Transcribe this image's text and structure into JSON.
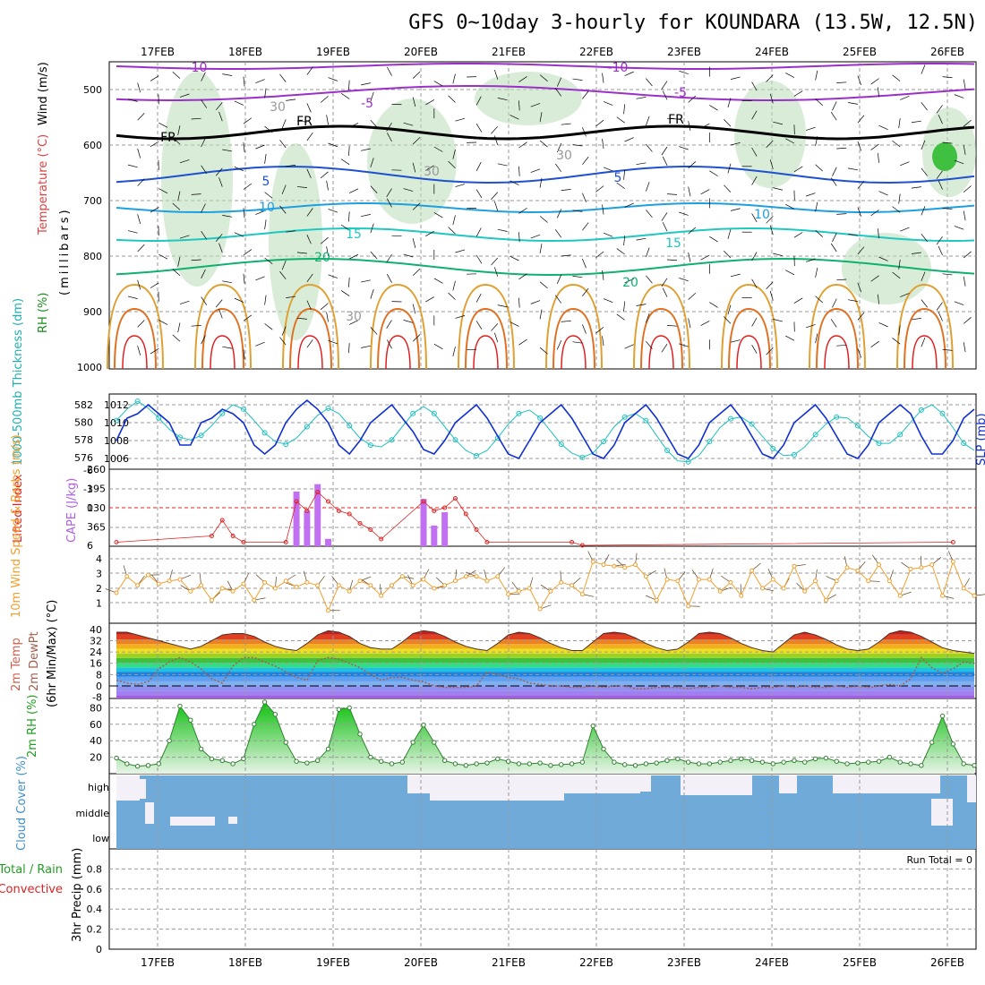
{
  "header": {
    "title": "GFS 0~10day 3-hourly for KOUNDARA (13.5W, 12.5N)"
  },
  "colors": {
    "isotherm_minus10": "#9b30c8",
    "isotherm_minus5": "#9b30c8",
    "freezing_level": "#000000",
    "isotherm_5": "#1e50d0",
    "isotherm_10": "#1ea0e0",
    "isotherm_15": "#1ec8c0",
    "isotherm_20": "#10b070",
    "isotherm_warm": "#e0a030",
    "rh_fill": "#b8dcb8",
    "slp_line": "#1030d0",
    "thickness_line": "#20c0c0",
    "lifted_index": "#e02020",
    "cape_bars": "#c070f0",
    "wind_speed": "#f0a030",
    "dewpoint": "#a06050",
    "rh2m_fill": "#20c020",
    "cloud_fill": "#70aad8",
    "cloud_clear": "#f4f0f8",
    "grid": "#999999"
  },
  "chart_data": [
    {
      "panel": "upper-air",
      "type": "contour",
      "ylabel_temperature": "Temperature (°C)",
      "ylabel_wind": "Wind (m/s)",
      "ylabel_rh": "RH (%)",
      "ylabel_axis": "(millibars)",
      "y_ticks": [
        "500",
        "600",
        "700",
        "800",
        "900",
        "1000"
      ],
      "contour_labels": [
        "-10",
        "-10",
        "-5",
        "-5",
        "FR",
        "FR",
        "FR",
        "5",
        "5",
        "10",
        "10",
        "15",
        "15",
        "20",
        "20",
        "30",
        "30",
        "30",
        "30"
      ]
    },
    {
      "panel": "slp-thickness",
      "type": "line",
      "ylabel_left": "1000-500mb Thickness (dm)",
      "ylabel_right": "SLP (mb)",
      "y_ticks_left": [
        "582",
        "580",
        "578",
        "576"
      ],
      "y_ticks_right": [
        "1012",
        "1010",
        "1008",
        "1006"
      ],
      "series": [
        {
          "name": "SLP (mb)",
          "values": [
            1008,
            1010.5,
            1011,
            1012,
            1011,
            1010,
            1007.5,
            1007.5,
            1010,
            1010.5,
            1011.5,
            1011,
            1010,
            1007.5,
            1006.5,
            1007.5,
            1010,
            1011.5,
            1012.5,
            1011.5,
            1010,
            1007.5,
            1006.5,
            1008,
            1010,
            1011,
            1012,
            1010.5,
            1009,
            1007,
            1006.5,
            1008,
            1010,
            1011,
            1012,
            1010.5,
            1008.5,
            1006.5,
            1006,
            1008,
            1010,
            1011,
            1012,
            1010.5,
            1008.5,
            1006.5,
            1006,
            1007.5,
            1010,
            1011,
            1012,
            1010.5,
            1008.5,
            1006.5,
            1006,
            1007.5,
            1010,
            1011,
            1012,
            1010.5,
            1008.5,
            1006.5,
            1006,
            1007.5,
            1010,
            1011,
            1012,
            1010.5,
            1008.5,
            1006.5,
            1006,
            1007.5,
            1010,
            1011,
            1012,
            1011,
            1008.5,
            1006.5,
            1006.5,
            1008,
            1010.5,
            1011.5
          ]
        },
        {
          "name": "Thickness (dm)",
          "values": [
            580.2,
            581.5,
            582.4,
            581.6,
            580.5,
            579.2,
            578.3,
            578.0,
            578.5,
            579.6,
            581.0,
            582.0,
            581.5,
            580.2,
            578.8,
            577.8,
            577.5,
            578.2,
            579.5,
            580.8,
            581.6,
            581.0,
            579.6,
            578.2,
            577.4,
            577.2,
            578.0,
            579.5,
            581.0,
            581.8,
            581.0,
            579.5,
            578.0,
            576.8,
            576.2,
            576.8,
            578.2,
            579.8,
            581.0,
            581.4,
            580.5,
            579.0,
            577.5,
            576.5,
            576.0,
            576.5,
            577.8,
            579.5,
            580.6,
            581.0,
            580.2,
            578.5,
            576.8,
            575.6,
            575.5,
            576.2,
            577.8,
            579.4,
            580.4,
            580.6,
            579.8,
            578.4,
            577.0,
            576.2,
            576.3,
            577.2,
            578.6,
            579.8,
            580.6,
            580.5,
            579.6,
            578.4,
            577.6,
            577.6,
            578.6,
            580.0,
            581.4,
            582.0,
            581.0,
            579.4,
            577.6,
            576.8
          ]
        }
      ]
    },
    {
      "panel": "stability",
      "type": "bar",
      "ylabel_left": "Lifted Index",
      "ylabel_right": "CAPE (J/kg)",
      "y_ticks_left": [
        "-6",
        "-3",
        "0",
        "3",
        "6"
      ],
      "y_ticks_right": [
        "260",
        "195",
        "130",
        "65"
      ],
      "series": [
        {
          "name": "CAPE (J/kg)",
          "values": [
            0,
            0,
            0,
            0,
            0,
            0,
            0,
            0,
            0,
            0,
            0,
            0,
            0,
            0,
            0,
            0,
            0,
            185,
            120,
            210,
            25,
            0,
            0,
            0,
            0,
            0,
            0,
            0,
            0,
            160,
            70,
            115,
            0,
            0,
            0,
            0,
            0,
            0,
            0,
            0,
            0,
            0,
            0,
            0,
            0,
            0,
            0,
            0,
            0,
            0,
            0,
            0,
            0,
            0,
            0,
            0,
            0,
            0,
            0,
            0,
            0,
            0,
            0,
            0,
            0,
            0,
            0,
            0,
            0,
            0,
            0,
            0,
            0,
            0,
            0,
            0,
            0,
            0,
            0,
            0,
            0,
            0
          ]
        },
        {
          "name": "Lifted Index",
          "values": [
            5.5,
            null,
            null,
            null,
            null,
            null,
            null,
            null,
            null,
            4.5,
            2.0,
            4.5,
            5.5,
            null,
            null,
            null,
            5.5,
            -1.0,
            0.5,
            -2.5,
            -1.0,
            0.5,
            1.0,
            2.5,
            3.5,
            5.0,
            null,
            null,
            null,
            -1.0,
            0.5,
            0.0,
            -1.5,
            1.0,
            3.5,
            5.5,
            null,
            null,
            null,
            null,
            null,
            null,
            null,
            5.5,
            6.0,
            null,
            null,
            null,
            null,
            null,
            null,
            null,
            null,
            null,
            null,
            null,
            null,
            null,
            null,
            null,
            null,
            null,
            null,
            null,
            null,
            null,
            null,
            null,
            null,
            null,
            null,
            null,
            null,
            null,
            null,
            null,
            null,
            null,
            null,
            5.5,
            null,
            null
          ]
        }
      ]
    },
    {
      "panel": "surface-wind",
      "type": "line",
      "ylabel": "10m Wind Speed & Barbs (m/s)",
      "y_ticks": [
        "4",
        "3",
        "2",
        "1"
      ],
      "series": [
        {
          "name": "10m Wind Speed (m/s)",
          "values": [
            1.7,
            2.8,
            2.2,
            2.9,
            2.3,
            2.5,
            2.6,
            1.8,
            2.2,
            1.2,
            2.0,
            1.8,
            2.3,
            1.2,
            2.4,
            2.0,
            2.5,
            2.1,
            2.4,
            2.2,
            0.5,
            2.2,
            1.8,
            2.5,
            2.2,
            1.5,
            2.2,
            2.8,
            2.2,
            2.6,
            2.0,
            2.2,
            2.5,
            2.8,
            2.8,
            2.5,
            2.8,
            1.6,
            1.8,
            2.0,
            0.6,
            1.8,
            2.4,
            2.2,
            1.6,
            3.8,
            3.6,
            3.5,
            3.4,
            3.6,
            2.8,
            1.2,
            2.6,
            2.5,
            0.8,
            2.6,
            2.6,
            1.8,
            2.4,
            1.5,
            3.2,
            2.0,
            2.6,
            2.0,
            3.5,
            1.8,
            2.5,
            1.2,
            2.5,
            3.4,
            3.2,
            2.5,
            3.6,
            2.5,
            1.5,
            3.3,
            3.4,
            3.6,
            1.5,
            3.8,
            2.0,
            1.5
          ]
        }
      ]
    },
    {
      "panel": "surface-temperature",
      "type": "area",
      "ylabel_temp": "2m Temp",
      "ylabel_dewpt": "2m DewPt",
      "ylabel_minmax": "(6hr Min/Max) (°C)",
      "y_ticks": [
        "40",
        "32",
        "24",
        "16",
        "8",
        "0",
        "-8"
      ],
      "series": [
        {
          "name": "2m Temp",
          "values": [
            38,
            38,
            36,
            34,
            32,
            30,
            28,
            26,
            28,
            32,
            36,
            37,
            37,
            35,
            31,
            28,
            26,
            25,
            30,
            36,
            39,
            38,
            35,
            30,
            27,
            26,
            26,
            31,
            37,
            39,
            38,
            35,
            31,
            28,
            26,
            25,
            30,
            36,
            38,
            37,
            34,
            30,
            27,
            25,
            25,
            31,
            37,
            38,
            37,
            34,
            30,
            27,
            25,
            26,
            31,
            37,
            38,
            37,
            34,
            30,
            27,
            25,
            24,
            30,
            36,
            38,
            36,
            33,
            29,
            26,
            25,
            26,
            31,
            37,
            39,
            38,
            35,
            31,
            27,
            25,
            24,
            23
          ]
        },
        {
          "name": "2m DewPt",
          "values": [
            4,
            2,
            1,
            3,
            12,
            17,
            20,
            17,
            12,
            5,
            2,
            14,
            20,
            20,
            17,
            14,
            10,
            6,
            4,
            18,
            20,
            19,
            16,
            13,
            8,
            4,
            6,
            6,
            4,
            3,
            0,
            -1,
            -1,
            -1,
            0,
            10,
            8,
            6,
            5,
            2,
            1,
            0,
            0,
            -1,
            -1,
            0,
            -1,
            0,
            0,
            -2,
            -2,
            -1,
            -1,
            -1,
            -2,
            -1,
            -1,
            0,
            -1,
            -1,
            -2,
            -1,
            -1,
            0,
            -1,
            0,
            -1,
            -1,
            0,
            -1,
            0,
            -1,
            0,
            1,
            0,
            5,
            20,
            13,
            9,
            12,
            17,
            16
          ]
        }
      ]
    },
    {
      "panel": "surface-rh",
      "type": "area",
      "ylabel": "2m RH (%)",
      "y_ticks": [
        "80",
        "60",
        "40",
        "20"
      ],
      "series": [
        {
          "name": "2m RH (%)",
          "values": [
            19,
            12,
            9,
            10,
            12,
            40,
            82,
            65,
            30,
            18,
            16,
            12,
            18,
            60,
            87,
            72,
            38,
            15,
            13,
            16,
            30,
            78,
            80,
            48,
            20,
            15,
            12,
            14,
            38,
            59,
            38,
            16,
            12,
            10,
            12,
            13,
            18,
            15,
            12,
            12,
            13,
            10,
            11,
            12,
            14,
            58,
            30,
            14,
            11,
            10,
            12,
            13,
            16,
            18,
            14,
            12,
            12,
            14,
            16,
            18,
            16,
            14,
            12,
            14,
            16,
            14,
            18,
            19,
            15,
            12,
            13,
            14,
            15,
            20,
            14,
            12,
            10,
            38,
            70,
            36,
            12,
            10
          ]
        }
      ]
    },
    {
      "panel": "cloud-cover",
      "type": "area",
      "ylabel": "Cloud Cover (%)",
      "levels": [
        "high",
        "middle",
        "low"
      ]
    },
    {
      "panel": "precipitation",
      "type": "bar",
      "ylabel_total": "Total / Rain",
      "ylabel_conv": "Convective",
      "ylabel_axis": "3hr Precip (mm)",
      "y_ticks": [
        "0.8",
        "0.6",
        "0.4",
        "0.2",
        "0"
      ],
      "run_total": "Run Total = 0",
      "series": [
        {
          "name": "Total / Rain",
          "values": []
        },
        {
          "name": "Convective",
          "values": []
        }
      ]
    }
  ],
  "x_axis": {
    "dates": [
      "17FEB",
      "18FEB",
      "19FEB",
      "20FEB",
      "21FEB",
      "22FEB",
      "23FEB",
      "24FEB",
      "25FEB",
      "26FEB"
    ]
  }
}
